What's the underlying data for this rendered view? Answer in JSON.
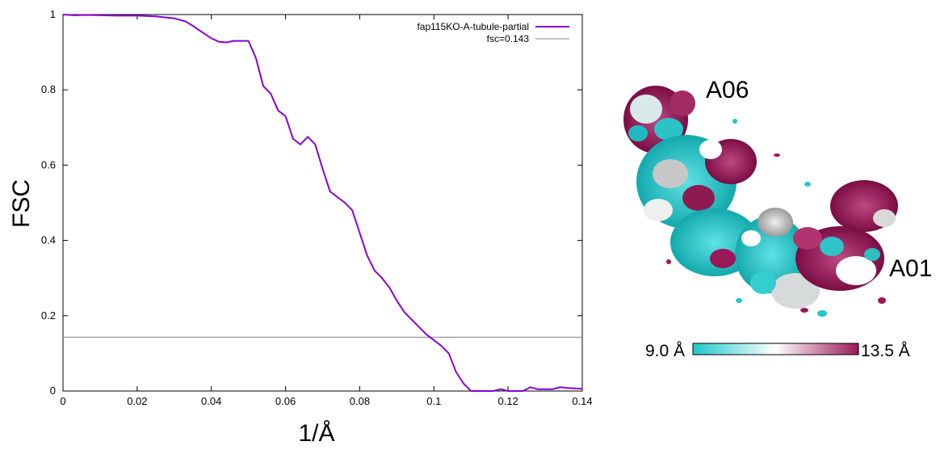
{
  "colors": {
    "fsc_curve": "#8a00d4",
    "threshold_line": "#808080",
    "scale_low": "#1ec8cc",
    "scale_mid": "#ffffff",
    "scale_high": "#9a1758"
  },
  "chart_data": {
    "type": "line",
    "title": "",
    "xlabel": "1/Å",
    "ylabel": "FSC",
    "xlim": [
      0,
      0.14
    ],
    "ylim": [
      0,
      1
    ],
    "x_ticks": [
      "0",
      "0.02",
      "0.04",
      "0.06",
      "0.08",
      "0.1",
      "0.12",
      "0.14"
    ],
    "y_ticks": [
      "0",
      "0.2",
      "0.4",
      "0.6",
      "0.8",
      "1"
    ],
    "grid": false,
    "legend_position": "top-right",
    "series": [
      {
        "name": "fap115KO-A-tubule-partial",
        "x": [
          0,
          0.003,
          0.006,
          0.01,
          0.015,
          0.02,
          0.025,
          0.03,
          0.033,
          0.035,
          0.038,
          0.04,
          0.042,
          0.044,
          0.046,
          0.048,
          0.05,
          0.052,
          0.054,
          0.056,
          0.058,
          0.06,
          0.062,
          0.064,
          0.066,
          0.068,
          0.07,
          0.072,
          0.074,
          0.076,
          0.078,
          0.08,
          0.082,
          0.084,
          0.086,
          0.088,
          0.09,
          0.092,
          0.094,
          0.096,
          0.098,
          0.1,
          0.102,
          0.104,
          0.106,
          0.108,
          0.11,
          0.112,
          0.114,
          0.116,
          0.118,
          0.12,
          0.122,
          0.124,
          0.126,
          0.128,
          0.13,
          0.132,
          0.134,
          0.136,
          0.138,
          0.14
        ],
        "y": [
          1.0,
          0.998,
          0.999,
          0.998,
          0.997,
          0.997,
          0.995,
          0.99,
          0.982,
          0.97,
          0.95,
          0.937,
          0.928,
          0.926,
          0.93,
          0.93,
          0.93,
          0.885,
          0.81,
          0.79,
          0.745,
          0.73,
          0.67,
          0.655,
          0.675,
          0.655,
          0.59,
          0.53,
          0.515,
          0.5,
          0.48,
          0.42,
          0.36,
          0.32,
          0.3,
          0.275,
          0.24,
          0.21,
          0.19,
          0.17,
          0.15,
          0.135,
          0.12,
          0.1,
          0.05,
          0.02,
          0.0,
          0.0,
          0.0,
          0.0,
          0.005,
          0.0,
          0.0,
          0.0,
          0.01,
          0.005,
          0.005,
          0.005,
          0.01,
          0.008,
          0.007,
          0.006
        ]
      },
      {
        "name": "fsc=0.143",
        "x": [
          0,
          0.14
        ],
        "y": [
          0.143,
          0.143
        ]
      }
    ]
  },
  "map": {
    "labels": [
      "A06",
      "A01"
    ],
    "scale_min_label": "9.0 Å",
    "scale_max_label": "13.5 Å"
  }
}
